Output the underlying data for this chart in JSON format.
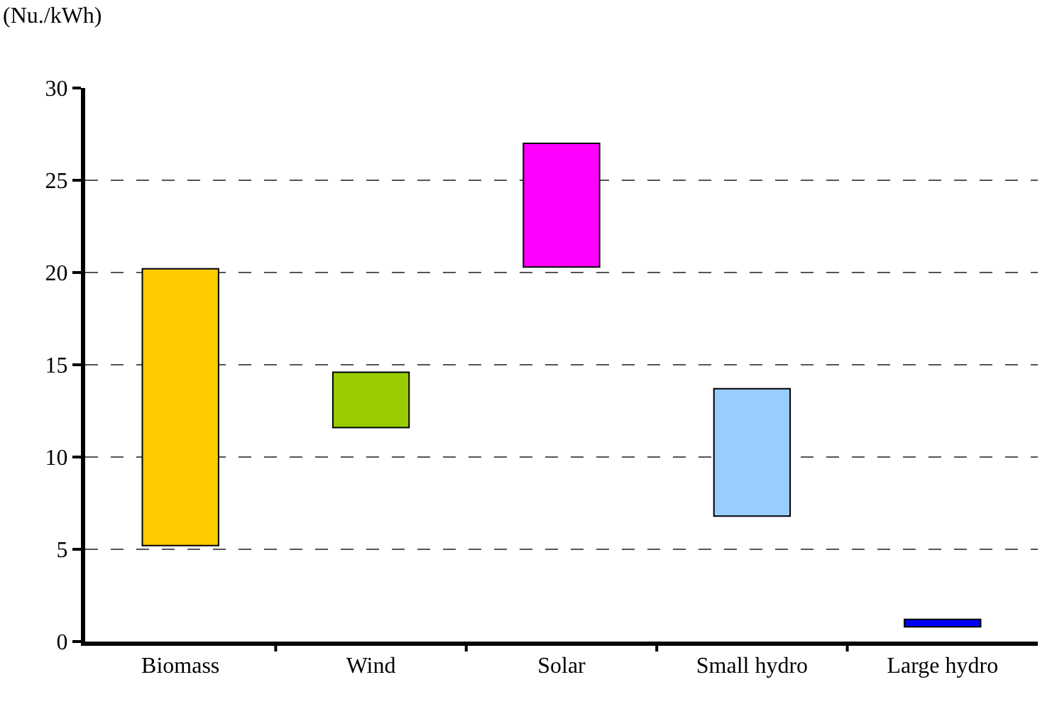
{
  "chart_data": {
    "type": "bar",
    "ylabel": "(Nu./kWh)",
    "categories": [
      "Biomass",
      "Wind",
      "Solar",
      "Small hydro",
      "Large hydro"
    ],
    "base": [
      5.2,
      11.6,
      20.3,
      6.8,
      0.8
    ],
    "values": [
      15.0,
      3.0,
      6.7,
      6.9,
      0.4
    ],
    "colors": [
      "#ffcc00",
      "#99cc00",
      "#ff00ff",
      "#99ccff",
      "#0000ff"
    ],
    "ylim": [
      0,
      30
    ],
    "yticks": [
      0,
      5,
      10,
      15,
      20,
      25,
      30
    ],
    "grid": "y",
    "line_style": "dashed"
  }
}
